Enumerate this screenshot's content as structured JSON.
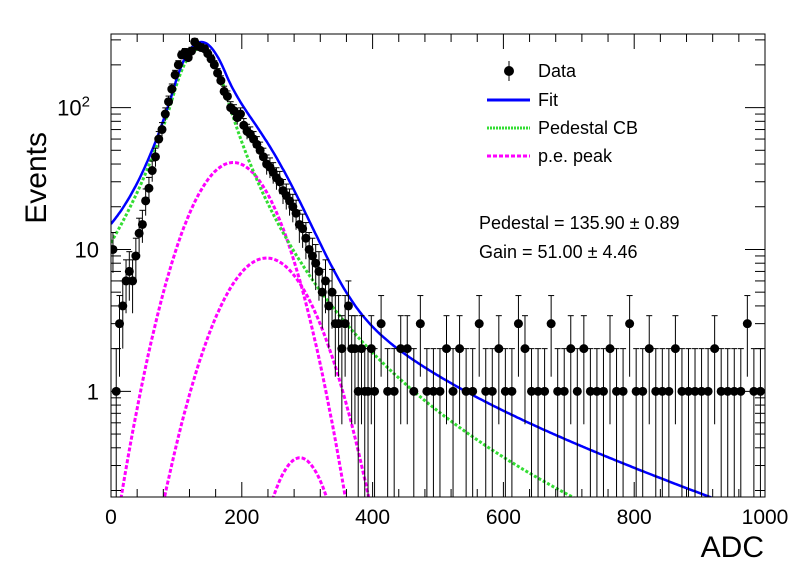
{
  "chart_data": {
    "type": "scatter",
    "title": "",
    "xlabel": "ADC",
    "ylabel": "Events",
    "xlim": [
      0,
      1000
    ],
    "ylim": [
      0.18,
      330
    ],
    "yscale": "log",
    "grid": false,
    "legend_position": "top-right",
    "x_ticks": [
      {
        "value": 0,
        "label": "0"
      },
      {
        "value": 200,
        "label": "200"
      },
      {
        "value": 400,
        "label": "400"
      },
      {
        "value": 600,
        "label": "600"
      },
      {
        "value": 800,
        "label": "800"
      },
      {
        "value": 1000,
        "label": "1000"
      }
    ],
    "y_ticks": [
      {
        "value": 1,
        "label": "1"
      },
      {
        "value": 10,
        "label": "10"
      },
      {
        "value": 100,
        "label": "10",
        "exponent": "2"
      }
    ],
    "stats": {
      "pedestal": "Pedestal = 135.90 ± 0.89",
      "gain": "Gain = 51.00 ± 4.46"
    },
    "series": [
      {
        "name": "Data",
        "color": "#000000",
        "x": [
          3,
          8,
          13,
          18,
          23,
          28,
          33,
          38,
          43,
          48,
          53,
          58,
          63,
          68,
          73,
          78,
          83,
          88,
          93,
          98,
          103,
          108,
          113,
          118,
          123,
          128,
          133,
          138,
          143,
          148,
          153,
          158,
          163,
          168,
          173,
          178,
          183,
          188,
          193,
          198,
          203,
          208,
          213,
          218,
          223,
          228,
          233,
          238,
          243,
          248,
          253,
          258,
          263,
          268,
          273,
          278,
          283,
          288,
          293,
          298,
          303,
          308,
          313,
          318,
          323,
          328,
          333,
          338,
          343,
          348,
          353,
          358,
          363,
          368,
          373,
          378,
          383,
          388,
          393,
          398,
          403,
          413,
          423,
          433,
          443,
          453,
          463,
          473,
          483,
          493,
          503,
          513,
          523,
          533,
          543,
          553,
          563,
          573,
          583,
          593,
          603,
          613,
          623,
          633,
          643,
          653,
          663,
          673,
          683,
          693,
          703,
          713,
          723,
          733,
          743,
          753,
          763,
          773,
          783,
          793,
          803,
          813,
          823,
          833,
          843,
          853,
          863,
          873,
          883,
          893,
          903,
          913,
          923,
          933,
          943,
          953,
          963,
          973,
          983,
          993
        ],
        "y": [
          10,
          1,
          3,
          4,
          6,
          7,
          6,
          9,
          13,
          15,
          22,
          27,
          36,
          45,
          60,
          70,
          90,
          110,
          135,
          170,
          200,
          235,
          245,
          225,
          250,
          290,
          270,
          265,
          260,
          240,
          220,
          200,
          175,
          155,
          130,
          120,
          100,
          95,
          85,
          90,
          75,
          68,
          65,
          60,
          55,
          50,
          45,
          40,
          38,
          35,
          32,
          30,
          26,
          24,
          22,
          20,
          18,
          15,
          14,
          12,
          10,
          9,
          8,
          7,
          5,
          6,
          4,
          5,
          3,
          3,
          2,
          3,
          4,
          2,
          2,
          1,
          2,
          1,
          1,
          2,
          1,
          3,
          1,
          1,
          2,
          2,
          1,
          3,
          1,
          1,
          1,
          2,
          1,
          2,
          1,
          1,
          3,
          1,
          1,
          2,
          1,
          1,
          3,
          2,
          1,
          1,
          1,
          3,
          1,
          1,
          2,
          1,
          2,
          1,
          1,
          1,
          2,
          1,
          1,
          3,
          1,
          1,
          2,
          1,
          1,
          1,
          2,
          1,
          1,
          1,
          1,
          1,
          2,
          1,
          1,
          1,
          1,
          3,
          1,
          1
        ]
      },
      {
        "name": "Fit",
        "color": "#0000ff",
        "model": "sum",
        "x_range": [
          0,
          1000
        ]
      },
      {
        "name": "Pedestal CB",
        "color": "#33dd33",
        "model": "crystal_ball",
        "params": {
          "amplitude": 260,
          "mean": 135.9,
          "sigma": 33,
          "alpha": 1.2,
          "n": 3.5
        },
        "x_range": [
          0,
          1000
        ]
      },
      {
        "name": "p.e. peak",
        "color": "#ff00ff",
        "model": "gaussians",
        "peaks": [
          {
            "amplitude": 41,
            "mean": 186.9,
            "sigma": 52
          },
          {
            "amplitude": 8.7,
            "mean": 237.9,
            "sigma": 56
          },
          {
            "amplitude": 0.34,
            "mean": 288.9,
            "sigma": 36
          }
        ],
        "x_range": [
          0,
          1000
        ]
      }
    ]
  }
}
